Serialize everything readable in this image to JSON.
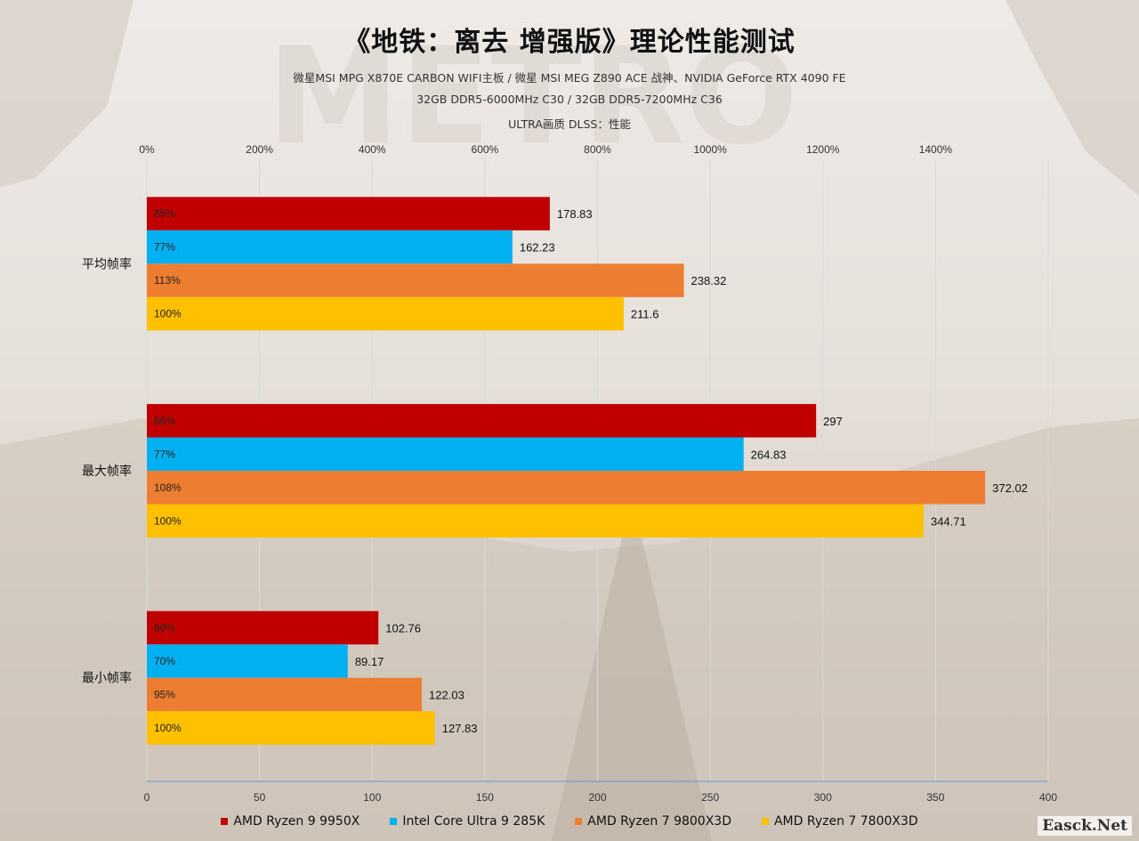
{
  "title": "《地铁：离去 增强版》理论性能测试",
  "subtitles": [
    "微星MSI MPG X870E CARBON WIFI主板 / 微星 MSI MEG Z890 ACE 战神、NVIDIA GeForce RTX 4090 FE",
    "32GB DDR5-6000MHz  C30 / 32GB DDR5-7200MHz  C36",
    "ULTRA画质  DLSS：性能"
  ],
  "watermark": "Easck.Net",
  "chart_data": {
    "type": "bar",
    "orientation": "horizontal",
    "categories": [
      "平均帧率",
      "最大帧率",
      "最小帧率"
    ],
    "series": [
      {
        "name": "AMD Ryzen 9 9950X",
        "color": "#c00000",
        "values": [
          178.83,
          297,
          102.76
        ],
        "percent_labels": [
          "85%",
          "86%",
          "80%"
        ]
      },
      {
        "name": "Intel Core Ultra 9 285K",
        "color": "#00b0f0",
        "values": [
          162.23,
          264.83,
          89.17
        ],
        "percent_labels": [
          "77%",
          "77%",
          "70%"
        ]
      },
      {
        "name": "AMD Ryzen 7 9800X3D",
        "color": "#ed7d31",
        "values": [
          238.32,
          372.02,
          122.03
        ],
        "percent_labels": [
          "113%",
          "108%",
          "95%"
        ]
      },
      {
        "name": "AMD Ryzen 7 7800X3D",
        "color": "#ffc000",
        "values": [
          211.6,
          344.71,
          127.83
        ],
        "percent_labels": [
          "100%",
          "100%",
          "100%"
        ]
      }
    ],
    "value_labels": [
      [
        "178.83",
        "297",
        "102.76"
      ],
      [
        "162.23",
        "264.83",
        "89.17"
      ],
      [
        "238.32",
        "372.02",
        "122.03"
      ],
      [
        "211.6",
        "344.71",
        "127.83"
      ]
    ],
    "bottom_axis": {
      "ticks": [
        0,
        50,
        100,
        150,
        200,
        250,
        300,
        350,
        400
      ],
      "range": [
        0,
        400
      ]
    },
    "top_axis": {
      "ticks": [
        "0%",
        "200%",
        "400%",
        "600%",
        "800%",
        "1000%",
        "1200%",
        "1400%"
      ],
      "range": [
        0,
        1600
      ]
    },
    "grid": "vertical",
    "legend": "bottom"
  }
}
